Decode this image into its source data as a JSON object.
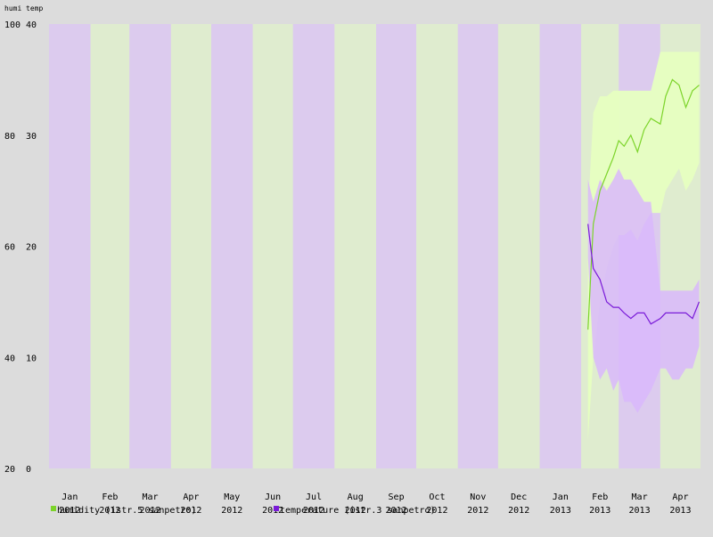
{
  "chart_data": {
    "type": "line",
    "title": "",
    "axis_titles": {
      "left": "humi",
      "right": "temp"
    },
    "y_left": {
      "label": "humi",
      "ylim": [
        20,
        100
      ],
      "ticks": [
        20,
        40,
        60,
        80,
        100
      ]
    },
    "y_right": {
      "label": "temp",
      "ylim": [
        0,
        40
      ],
      "ticks": [
        0,
        10,
        20,
        30,
        40
      ]
    },
    "month_bands": [
      {
        "month": "Jan",
        "year": "2012"
      },
      {
        "month": "Feb",
        "year": "2012"
      },
      {
        "month": "Mar",
        "year": "2012"
      },
      {
        "month": "Apr",
        "year": "2012"
      },
      {
        "month": "May",
        "year": "2012"
      },
      {
        "month": "Jun",
        "year": "2012"
      },
      {
        "month": "Jul",
        "year": "2012"
      },
      {
        "month": "Aug",
        "year": "2012"
      },
      {
        "month": "Sep",
        "year": "2012"
      },
      {
        "month": "Oct",
        "year": "2012"
      },
      {
        "month": "Nov",
        "year": "2012"
      },
      {
        "month": "Dec",
        "year": "2012"
      },
      {
        "month": "Jan",
        "year": "2013"
      },
      {
        "month": "Feb",
        "year": "2013"
      },
      {
        "month": "Mar",
        "year": "2013"
      },
      {
        "month": "Apr",
        "year": "2013"
      }
    ],
    "band_colors": [
      "#dccbee",
      "#dfeccf"
    ],
    "data_start": "2013-02-06",
    "data_end": "2013-04-30",
    "series": [
      {
        "name": "humidity (istr.5 sanpetro)",
        "axis": "left",
        "color": "#7cd42a",
        "range_color": "#e6ffc0",
        "x": [
          "2013-02-06",
          "2013-02-10",
          "2013-02-15",
          "2013-02-20",
          "2013-02-25",
          "2013-03-01",
          "2013-03-05",
          "2013-03-10",
          "2013-03-15",
          "2013-03-20",
          "2013-03-25",
          "2013-04-01",
          "2013-04-05",
          "2013-04-10",
          "2013-04-15",
          "2013-04-20",
          "2013-04-25",
          "2013-04-30"
        ],
        "values": [
          45,
          64,
          70,
          73,
          76,
          79,
          78,
          80,
          77,
          81,
          83,
          82,
          87,
          90,
          89,
          85,
          88,
          89
        ],
        "min": [
          25,
          40,
          50,
          56,
          60,
          62,
          62,
          63,
          61,
          64,
          66,
          66,
          70,
          72,
          74,
          70,
          72,
          75
        ],
        "max": [
          66,
          84,
          87,
          87,
          88,
          88,
          88,
          88,
          88,
          88,
          88,
          95,
          95,
          95,
          95,
          95,
          95,
          95
        ]
      },
      {
        "name": "temperature (istr.3 sanpetro)",
        "axis": "right",
        "color": "#7a1bd8",
        "range_color": "#d9b8fb",
        "x": [
          "2013-02-06",
          "2013-02-10",
          "2013-02-15",
          "2013-02-20",
          "2013-02-25",
          "2013-03-01",
          "2013-03-05",
          "2013-03-10",
          "2013-03-15",
          "2013-03-20",
          "2013-03-25",
          "2013-04-01",
          "2013-04-05",
          "2013-04-10",
          "2013-04-15",
          "2013-04-20",
          "2013-04-25",
          "2013-04-30"
        ],
        "values": [
          22,
          18,
          17,
          15,
          14.5,
          14.5,
          14,
          13.5,
          14,
          14,
          13,
          13.5,
          14,
          14,
          14,
          14,
          13.5,
          15
        ],
        "min": [
          19,
          10,
          8,
          9,
          7,
          8,
          6,
          6,
          5,
          6,
          7,
          9,
          9,
          8,
          8,
          9,
          9,
          11
        ],
        "max": [
          26,
          24,
          26,
          25,
          26,
          27,
          26,
          26,
          25,
          24,
          24,
          16,
          16,
          16,
          16,
          16,
          16,
          17
        ]
      }
    ],
    "legend": {
      "position": "bottom"
    }
  }
}
